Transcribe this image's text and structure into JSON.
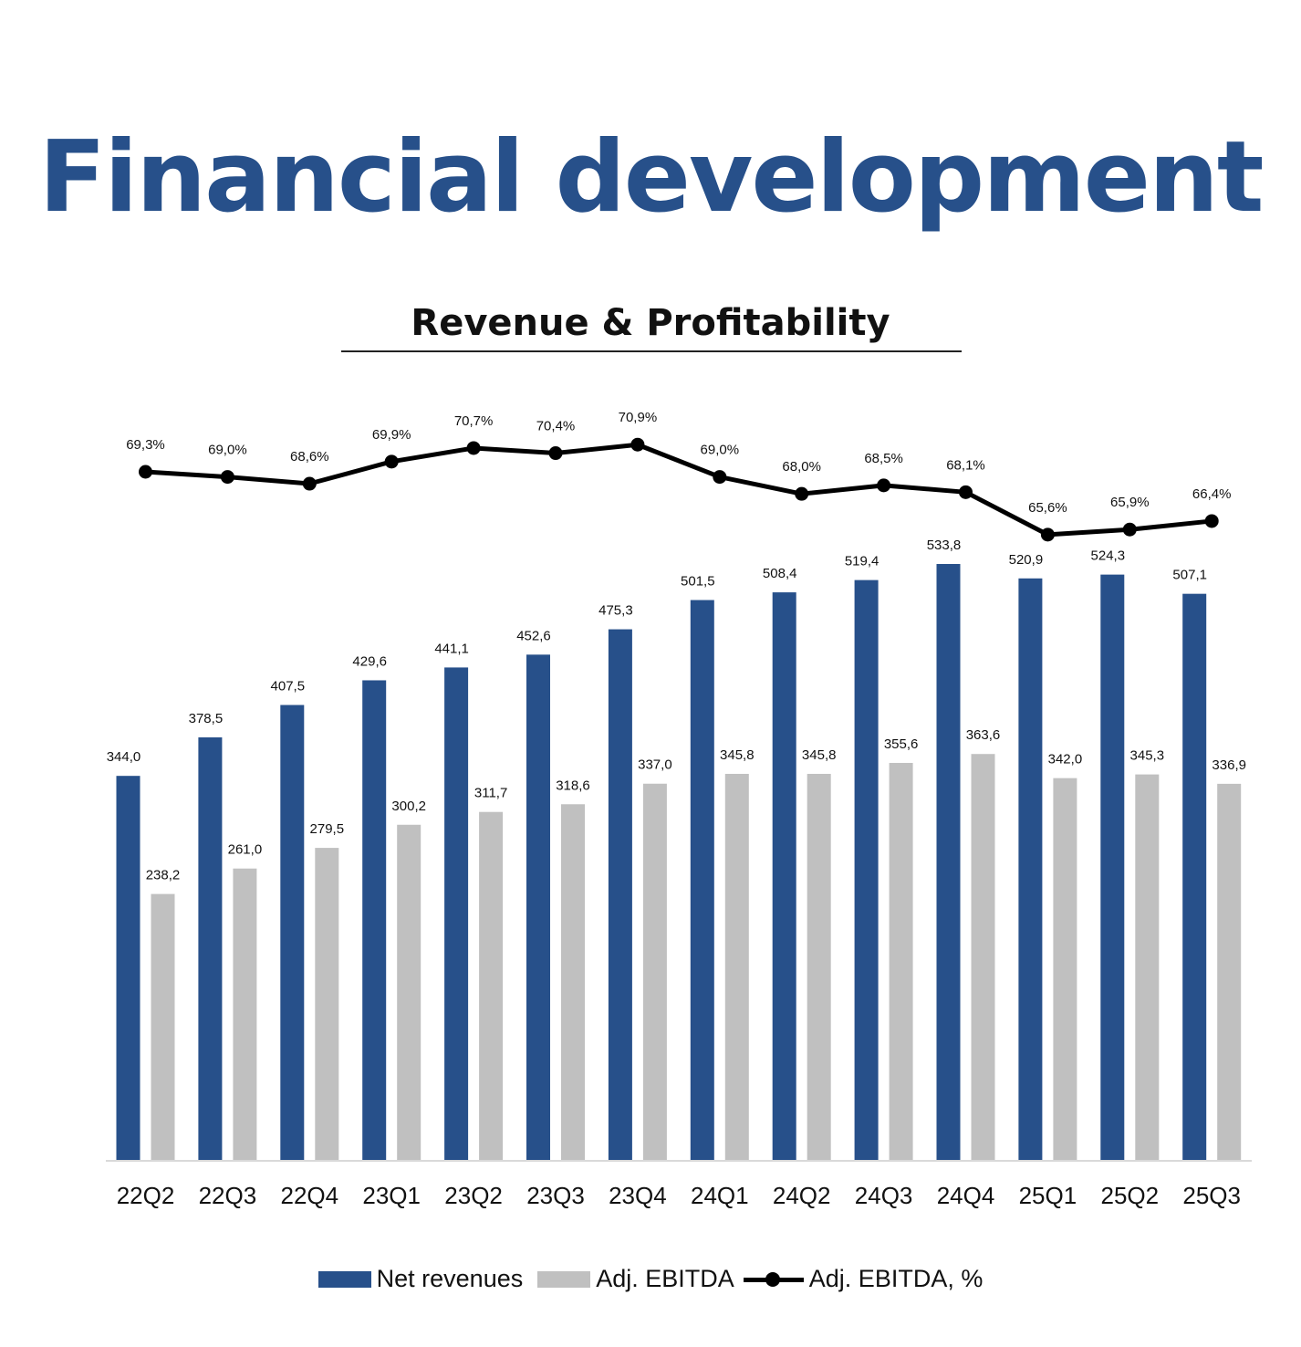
{
  "page": {
    "title": "Financial development"
  },
  "chart_data": {
    "type": "bar",
    "title": "Revenue & Profitability",
    "categories": [
      "22Q2",
      "22Q3",
      "22Q4",
      "23Q1",
      "23Q2",
      "23Q3",
      "23Q4",
      "24Q1",
      "24Q2",
      "24Q3",
      "24Q4",
      "25Q1",
      "25Q2",
      "25Q3"
    ],
    "series": [
      {
        "name": "Net revenues",
        "type": "bar",
        "color": "#27508a",
        "values": [
          344.0,
          378.5,
          407.5,
          429.6,
          441.1,
          452.6,
          475.3,
          501.5,
          508.4,
          519.4,
          533.8,
          520.9,
          524.3,
          507.1
        ],
        "labels": [
          "344,0",
          "378,5",
          "407,5",
          "429,6",
          "441,1",
          "452,6",
          "475,3",
          "501,5",
          "508,4",
          "519,4",
          "533,8",
          "520,9",
          "524,3",
          "507,1"
        ]
      },
      {
        "name": "Adj. EBITDA",
        "type": "bar",
        "color": "#c0c0c0",
        "values": [
          238.2,
          261.0,
          279.5,
          300.2,
          311.7,
          318.6,
          337.0,
          345.8,
          345.8,
          355.6,
          363.6,
          342.0,
          345.3,
          336.9
        ],
        "labels": [
          "238,2",
          "261,0",
          "279,5",
          "300,2",
          "311,7",
          "318,6",
          "337,0",
          "345,8",
          "345,8",
          "355,6",
          "363,6",
          "342,0",
          "345,3",
          "336,9"
        ]
      },
      {
        "name": "Adj. EBITDA, %",
        "type": "line",
        "color": "#000000",
        "axis": "secondary",
        "values": [
          69.3,
          69.0,
          68.6,
          69.9,
          70.7,
          70.4,
          70.9,
          69.0,
          68.0,
          68.5,
          68.1,
          65.6,
          65.9,
          66.4
        ],
        "labels": [
          "69,3%",
          "69,0%",
          "68,6%",
          "69,9%",
          "70,7%",
          "70,4%",
          "70,9%",
          "69,0%",
          "68,0%",
          "68,5%",
          "68,1%",
          "65,6%",
          "65,9%",
          "66,4%"
        ]
      }
    ],
    "ylim": [
      0,
      600
    ],
    "y2lim": [
      60,
      72
    ],
    "grid": false,
    "legend": "bottom-center"
  }
}
